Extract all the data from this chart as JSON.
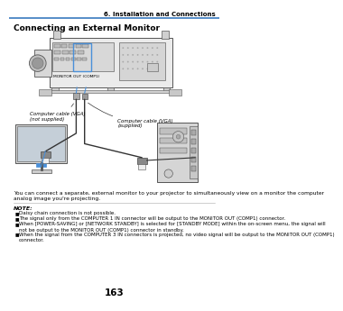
{
  "page_num": "163",
  "chapter_title": "6. Installation and Connections",
  "section_title": "Connecting an External Monitor",
  "body_text": "You can connect a separate, external monitor to your projector to simultaneously view on a monitor the computer\nanalog image you're projecting.",
  "note_label": "NOTE:",
  "note_bullets": [
    "Daisy chain connection is not possible.",
    "The signal only from the COMPUTER 1 IN connector will be output to the MONITOR OUT (COMP1) connector.",
    "When [POWER-SAVING] or [NETWORK STANDBY] is selected for [STANDBY MODE] within the on-screen menu, the signal will\nnot be output to the MONITOR OUT (COMP1) connector in standby.",
    "When the signal from the COMPUTER 3 IN connectors is projected, no video signal will be output to the MONITOR OUT (COMP1)\nconnector."
  ],
  "label_vga_not_supplied": "Computer cable (VGA)\n(not supplied)",
  "label_vga_supplied": "Computer cable (VGA)\n(supplied)",
  "label_monitor_out": "MONITOR OUT (COMP1)",
  "accent_color": "#4a90d9",
  "line_color": "#333333",
  "bg_color": "#ffffff",
  "text_color": "#000000",
  "header_line_color": "#3a7abf",
  "divider_color": "#aaaaaa",
  "gray_light": "#e0e0e0",
  "gray_mid": "#b0b0b0",
  "gray_dark": "#777777"
}
